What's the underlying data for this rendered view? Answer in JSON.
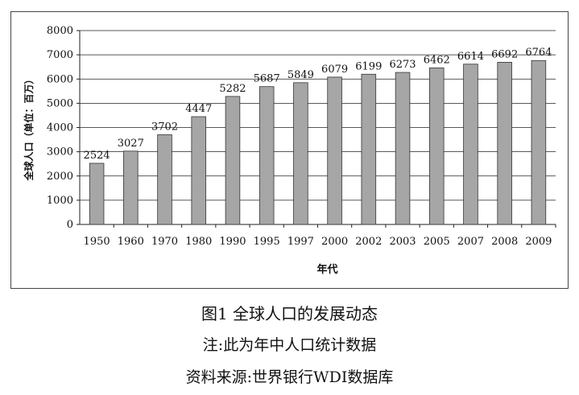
{
  "chart_data": {
    "type": "bar",
    "categories": [
      "1950",
      "1960",
      "1970",
      "1980",
      "1990",
      "1995",
      "1997",
      "2000",
      "2002",
      "2003",
      "2005",
      "2007",
      "2008",
      "2009"
    ],
    "values": [
      2524,
      3027,
      3702,
      4447,
      5282,
      5687,
      5849,
      6079,
      6199,
      6273,
      6462,
      6614,
      6692,
      6764
    ],
    "data_labels": [
      "2524",
      "3027",
      "3702",
      "4447",
      "5282",
      "5687",
      "5849",
      "6079",
      "6199",
      "6273",
      "6462",
      "6614",
      "6692",
      "6764"
    ],
    "xlabel": "年代",
    "ylabel": "全球人口（单位：百万）",
    "ylim": [
      0,
      8000
    ],
    "yticks": [
      "0",
      "1000",
      "2000",
      "3000",
      "4000",
      "5000",
      "6000",
      "7000",
      "8000"
    ],
    "grid": true,
    "bar_color": "#a6a6a6",
    "bar_edge_color": "#333333"
  },
  "caption": {
    "title": "图1  全球人口的发展动态",
    "note": "注:此为年中人口统计数据",
    "source": "资料来源:世界银行WDI数据库"
  }
}
